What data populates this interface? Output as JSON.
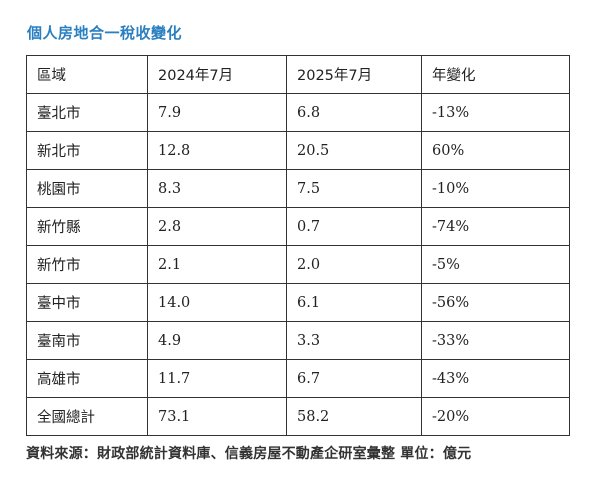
{
  "title": "個人房地合一稅收變化",
  "table": {
    "headers": [
      "區域",
      "2024年7月",
      "2025年7月",
      "年變化"
    ],
    "rows": [
      [
        "臺北市",
        "7.9",
        "6.8",
        "-13%"
      ],
      [
        "新北市",
        "12.8",
        "20.5",
        "60%"
      ],
      [
        "桃園市",
        "8.3",
        "7.5",
        "-10%"
      ],
      [
        "新竹縣",
        "2.8",
        "0.7",
        "-74%"
      ],
      [
        "新竹市",
        "2.1",
        "2.0",
        "-5%"
      ],
      [
        "臺中市",
        "14.0",
        "6.1",
        "-56%"
      ],
      [
        "臺南市",
        "4.9",
        "3.3",
        "-33%"
      ],
      [
        "高雄市",
        "11.7",
        "6.7",
        "-43%"
      ],
      [
        "全國總計",
        "73.1",
        "58.2",
        "-20%"
      ]
    ]
  },
  "source": "資料來源：財政部統計資料庫、信義房屋不動產企研室彙整  單位：億元"
}
